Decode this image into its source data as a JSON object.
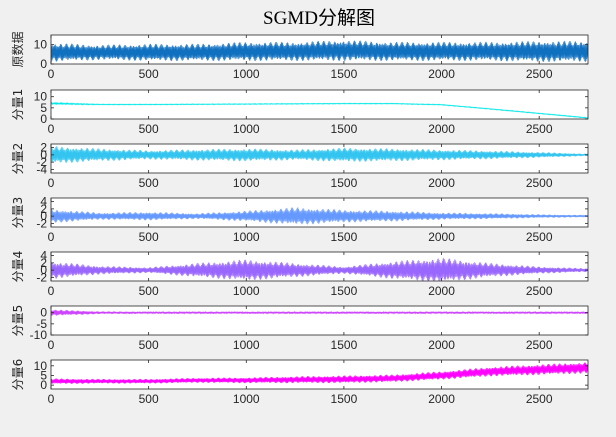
{
  "chart_data": {
    "type": "line",
    "title": "SGMD分解图",
    "x_range": [
      0,
      2750
    ],
    "x_ticks": [
      0,
      500,
      1000,
      1500,
      2000,
      2500
    ],
    "grid": false,
    "subplots": [
      {
        "ylabel": "原数据",
        "color": "#1070c0",
        "ylim": [
          0,
          15
        ],
        "y_ticks": [
          0,
          10
        ],
        "series": {
          "x": [
            0,
            250,
            500,
            750,
            1000,
            1250,
            1500,
            1750,
            2000,
            2250,
            2500,
            2750
          ],
          "center": [
            6,
            6,
            6,
            6,
            6.5,
            6.5,
            7,
            6.5,
            6.5,
            6.5,
            6.5,
            6.5
          ],
          "amplitude": [
            5,
            4,
            4.5,
            4.5,
            5,
            5,
            5.5,
            5,
            5,
            5,
            5.5,
            5.5
          ]
        }
      },
      {
        "ylabel": "分量1",
        "color": "#00e8e8",
        "ylim": [
          0,
          13
        ],
        "y_ticks": [
          0,
          5,
          10
        ],
        "series": {
          "x": [
            0,
            250,
            500,
            750,
            1000,
            1250,
            1500,
            1750,
            2000,
            2250,
            2500,
            2750
          ],
          "center": [
            7,
            6.5,
            6.5,
            6.6,
            6.7,
            6.8,
            6.9,
            6.9,
            6.4,
            4.5,
            2.5,
            0.5
          ],
          "amplitude": [
            0.4,
            0.2,
            0.2,
            0.2,
            0.2,
            0.2,
            0.2,
            0.2,
            0.2,
            0.2,
            0.2,
            0.2
          ]
        }
      },
      {
        "ylabel": "分量2",
        "color": "#33c5f0",
        "ylim": [
          -5,
          3
        ],
        "y_ticks": [
          -4,
          -2,
          0,
          2
        ],
        "series": {
          "x": [
            0,
            250,
            500,
            750,
            1000,
            1250,
            1500,
            1750,
            2000,
            2250,
            2500,
            2750
          ],
          "center": [
            0,
            0,
            0,
            0,
            0,
            0,
            0,
            0,
            0,
            0,
            0,
            0
          ],
          "amplitude": [
            2.5,
            1.8,
            1.3,
            1.6,
            1.8,
            1.5,
            2.0,
            1.8,
            1.5,
            1.2,
            0.8,
            0.3
          ]
        }
      },
      {
        "ylabel": "分量3",
        "color": "#6699ff",
        "ylim": [
          -3,
          5
        ],
        "y_ticks": [
          -2,
          0,
          2,
          4
        ],
        "series": {
          "x": [
            0,
            250,
            500,
            750,
            1000,
            1250,
            1500,
            1750,
            2000,
            2250,
            2500,
            2750
          ],
          "center": [
            0,
            0,
            0,
            0,
            0,
            0,
            0,
            0,
            0,
            0,
            0,
            0
          ],
          "amplitude": [
            2.0,
            1.0,
            1.2,
            0.8,
            1.5,
            2.5,
            1.8,
            1.5,
            1.0,
            0.8,
            0.5,
            0.3
          ]
        }
      },
      {
        "ylabel": "分量4",
        "color": "#9966ff",
        "ylim": [
          -3,
          5
        ],
        "y_ticks": [
          -2,
          0,
          2,
          4
        ],
        "series": {
          "x": [
            0,
            250,
            500,
            750,
            1000,
            1250,
            1500,
            1750,
            2000,
            2250,
            2500,
            2750
          ],
          "center": [
            0,
            0,
            0,
            0,
            0,
            0,
            0,
            0,
            0,
            0,
            0,
            0
          ],
          "amplitude": [
            2.5,
            1.2,
            0.8,
            2.0,
            3.0,
            2.0,
            1.0,
            2.5,
            3.5,
            2.0,
            1.0,
            0.5
          ]
        }
      },
      {
        "ylabel": "分量5",
        "color": "#cc44ff",
        "ylim": [
          -10,
          3
        ],
        "y_ticks": [
          -10,
          -5,
          0
        ],
        "series": {
          "x": [
            0,
            250,
            500,
            750,
            1000,
            1250,
            1500,
            1750,
            2000,
            2250,
            2500,
            2750
          ],
          "center": [
            0,
            0,
            0,
            0,
            0,
            0,
            0,
            0,
            0,
            0,
            0,
            0
          ],
          "amplitude": [
            1.5,
            0.6,
            0.5,
            0.5,
            0.5,
            0.5,
            0.5,
            0.5,
            0.5,
            0.5,
            0.5,
            0.5
          ]
        }
      },
      {
        "ylabel": "分量6",
        "color": "#ff00ff",
        "ylim": [
          -2,
          13
        ],
        "y_ticks": [
          0,
          5,
          10
        ],
        "series": {
          "x": [
            0,
            250,
            500,
            750,
            1000,
            1250,
            1500,
            1750,
            2000,
            2250,
            2500,
            2750
          ],
          "center": [
            2,
            2,
            2,
            2.5,
            2.5,
            2.8,
            3,
            3.5,
            5,
            7,
            8,
            9
          ],
          "amplitude": [
            1.5,
            1.2,
            1.2,
            1.3,
            1.5,
            1.8,
            2.0,
            2.0,
            2.2,
            2.5,
            2.8,
            3.0
          ]
        }
      }
    ]
  }
}
